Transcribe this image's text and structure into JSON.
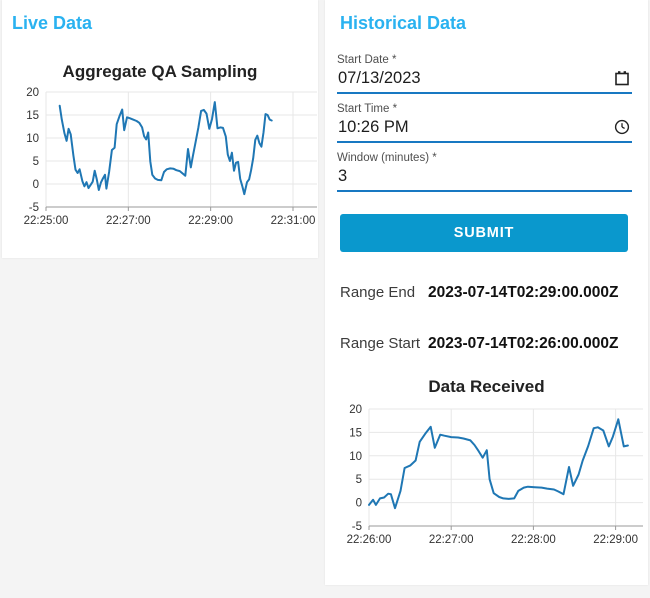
{
  "page": {
    "background": "#f4f4f4",
    "card_background": "#ffffff",
    "accent_heading_color": "#2ab2f0",
    "primary_button_color": "#0a98cd",
    "input_underline_color": "#1878c2",
    "chart_line_color": "#1f77b4"
  },
  "live_panel": {
    "heading": "Live Data"
  },
  "historical_panel": {
    "heading": "Historical Data",
    "fields": [
      {
        "label": "Start Date *",
        "value": "07/13/2023",
        "icon": "calendar-icon"
      },
      {
        "label": "Start Time *",
        "value": "10:26 PM",
        "icon": "clock-icon"
      },
      {
        "label": "Window (minutes) *",
        "value": "3",
        "icon": "none"
      }
    ],
    "submit_label": "SUBMIT",
    "range_end_label": "Range End",
    "range_end_value": "2023-07-14T02:29:00.000Z",
    "range_start_label": "Range Start",
    "range_start_value": "2023-07-14T02:26:00.000Z"
  },
  "chart_data": [
    {
      "type": "line",
      "title": "Aggregate QA Sampling",
      "xlabel": "",
      "ylabel": "",
      "x_tick_labels": [
        "22:25:00",
        "22:27:00",
        "22:29:00",
        "22:31:00"
      ],
      "x_tick_seconds": [
        0,
        120,
        240,
        360
      ],
      "x_range_seconds": [
        0,
        395
      ],
      "ylim": [
        -5,
        20
      ],
      "y_ticks": [
        20,
        15,
        10,
        5,
        0,
        -5
      ],
      "grid": true,
      "points": [
        [
          20,
          17.0
        ],
        [
          23,
          14.0
        ],
        [
          27,
          11.0
        ],
        [
          30,
          9.4
        ],
        [
          33,
          12.0
        ],
        [
          36,
          10.8
        ],
        [
          40,
          6.2
        ],
        [
          43,
          3.1
        ],
        [
          46,
          2.4
        ],
        [
          49,
          3.2
        ],
        [
          53,
          0.6
        ],
        [
          56,
          -0.5
        ],
        [
          59,
          0.4
        ],
        [
          62,
          -0.9
        ],
        [
          65,
          -0.2
        ],
        [
          68,
          0.5
        ],
        [
          71,
          2.9
        ],
        [
          74,
          1.0
        ],
        [
          77,
          -1.3
        ],
        [
          80,
          0.3
        ],
        [
          83,
          1.2
        ],
        [
          86,
          2.0
        ],
        [
          88,
          -1.0
        ],
        [
          92,
          2.6
        ],
        [
          96,
          7.4
        ],
        [
          100,
          7.9
        ],
        [
          103,
          13.0
        ],
        [
          107,
          14.7
        ],
        [
          111,
          16.2
        ],
        [
          114,
          11.7
        ],
        [
          118,
          14.5
        ],
        [
          122,
          14.3
        ],
        [
          127,
          14.0
        ],
        [
          132,
          13.7
        ],
        [
          136,
          13.3
        ],
        [
          140,
          12.3
        ],
        [
          143,
          10.4
        ],
        [
          146,
          9.7
        ],
        [
          149,
          11.2
        ],
        [
          152,
          4.9
        ],
        [
          155,
          2.0
        ],
        [
          159,
          1.2
        ],
        [
          163,
          0.9
        ],
        [
          168,
          0.8
        ],
        [
          172,
          2.6
        ],
        [
          176,
          3.2
        ],
        [
          181,
          3.4
        ],
        [
          186,
          3.3
        ],
        [
          190,
          3.0
        ],
        [
          195,
          2.8
        ],
        [
          199,
          2.3
        ],
        [
          203,
          1.8
        ],
        [
          207,
          7.6
        ],
        [
          211,
          3.6
        ],
        [
          214,
          6.0
        ],
        [
          218,
          9.1
        ],
        [
          222,
          12.2
        ],
        [
          226,
          15.9
        ],
        [
          230,
          16.1
        ],
        [
          234,
          15.3
        ],
        [
          238,
          12.0
        ],
        [
          242,
          14.1
        ],
        [
          246,
          17.8
        ],
        [
          250,
          12.1
        ],
        [
          254,
          12.3
        ],
        [
          258,
          12.2
        ],
        [
          262,
          10.3
        ],
        [
          265,
          6.4
        ],
        [
          268,
          5.0
        ],
        [
          271,
          6.8
        ],
        [
          274,
          2.9
        ],
        [
          277,
          4.6
        ],
        [
          280,
          4.8
        ],
        [
          283,
          1.1
        ],
        [
          286,
          -0.4
        ],
        [
          289,
          -2.2
        ],
        [
          293,
          0.4
        ],
        [
          296,
          1.0
        ],
        [
          299,
          3.0
        ],
        [
          302,
          5.6
        ],
        [
          305,
          9.6
        ],
        [
          308,
          10.5
        ],
        [
          311,
          8.9
        ],
        [
          314,
          8.1
        ],
        [
          317,
          11.2
        ],
        [
          320,
          15.2
        ],
        [
          323,
          15.0
        ],
        [
          326,
          14.0
        ],
        [
          329,
          13.8
        ]
      ]
    },
    {
      "type": "line",
      "title": "Data Received",
      "xlabel": "",
      "ylabel": "",
      "x_tick_labels": [
        "22:26:00",
        "22:27:00",
        "22:28:00",
        "22:29:00"
      ],
      "x_tick_seconds": [
        0,
        60,
        120,
        180
      ],
      "x_range_seconds": [
        0,
        200
      ],
      "ylim": [
        -5,
        20
      ],
      "y_ticks": [
        20,
        15,
        10,
        5,
        0,
        -5
      ],
      "grid": true,
      "points": [
        [
          0,
          -0.5
        ],
        [
          3,
          0.6
        ],
        [
          5,
          -0.5
        ],
        [
          8,
          0.9
        ],
        [
          11,
          1.1
        ],
        [
          14,
          1.9
        ],
        [
          16,
          1.8
        ],
        [
          19,
          -1.2
        ],
        [
          23,
          2.5
        ],
        [
          26,
          7.4
        ],
        [
          30,
          7.9
        ],
        [
          34,
          9.0
        ],
        [
          37,
          13.0
        ],
        [
          41,
          14.7
        ],
        [
          45,
          16.2
        ],
        [
          48,
          11.7
        ],
        [
          52,
          14.5
        ],
        [
          55,
          14.3
        ],
        [
          60,
          14.0
        ],
        [
          65,
          13.9
        ],
        [
          69,
          13.7
        ],
        [
          74,
          13.3
        ],
        [
          77,
          12.3
        ],
        [
          80,
          11.0
        ],
        [
          83,
          9.6
        ],
        [
          86,
          11.2
        ],
        [
          88,
          5.0
        ],
        [
          91,
          2.0
        ],
        [
          95,
          1.2
        ],
        [
          98,
          0.9
        ],
        [
          102,
          0.8
        ],
        [
          106,
          0.9
        ],
        [
          109,
          2.5
        ],
        [
          113,
          3.2
        ],
        [
          116,
          3.4
        ],
        [
          121,
          3.3
        ],
        [
          126,
          3.2
        ],
        [
          130,
          3.0
        ],
        [
          135,
          2.8
        ],
        [
          138,
          2.4
        ],
        [
          142,
          1.8
        ],
        [
          146,
          7.6
        ],
        [
          149,
          3.6
        ],
        [
          153,
          6.0
        ],
        [
          156,
          9.0
        ],
        [
          160,
          12.1
        ],
        [
          164,
          15.9
        ],
        [
          167,
          16.1
        ],
        [
          171,
          15.4
        ],
        [
          175,
          12.0
        ],
        [
          178,
          14.1
        ],
        [
          182,
          17.8
        ],
        [
          186,
          12.0
        ],
        [
          189,
          12.2
        ]
      ]
    }
  ]
}
